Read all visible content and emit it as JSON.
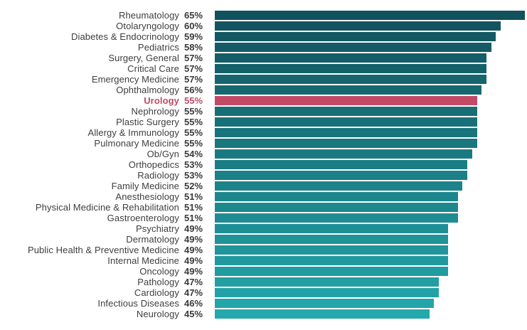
{
  "chart_data": {
    "type": "bar",
    "orientation": "horizontal",
    "title": "",
    "xlabel": "",
    "ylabel": "",
    "xlim": [
      0,
      65
    ],
    "grid": false,
    "legend": false,
    "value_suffix": "%",
    "categories": [
      "Rheumatology",
      "Otolaryngology",
      "Diabetes & Endocrinology",
      "Pediatrics",
      "Surgery, General",
      "Critical Care",
      "Emergency Medicine",
      "Ophthalmology",
      "Urology",
      "Nephrology",
      "Plastic Surgery",
      "Allergy & Immunology",
      "Pulmonary Medicine",
      "Ob/Gyn",
      "Orthopedics",
      "Radiology",
      "Family Medicine",
      "Anesthesiology",
      "Physical Medicine & Rehabilitation",
      "Gastroenterology",
      "Psychiatry",
      "Dermatology",
      "Public Health & Preventive Medicine",
      "Internal Medicine",
      "Oncology",
      "Pathology",
      "Cardiology",
      "Infectious Diseases",
      "Neurology"
    ],
    "values": [
      65,
      60,
      59,
      58,
      57,
      57,
      57,
      56,
      55,
      55,
      55,
      55,
      55,
      54,
      53,
      53,
      52,
      51,
      51,
      51,
      49,
      49,
      49,
      49,
      49,
      47,
      47,
      46,
      45
    ],
    "highlight": {
      "category": "Urology",
      "value": 55,
      "color": "#c24a66"
    },
    "colors": {
      "bar_gradient_top": "#12525c",
      "bar_gradient_bottom": "#23a8ac",
      "label_text": "#3e3e40",
      "value_text": "#3a3a3c",
      "background": "#ffffff"
    }
  }
}
